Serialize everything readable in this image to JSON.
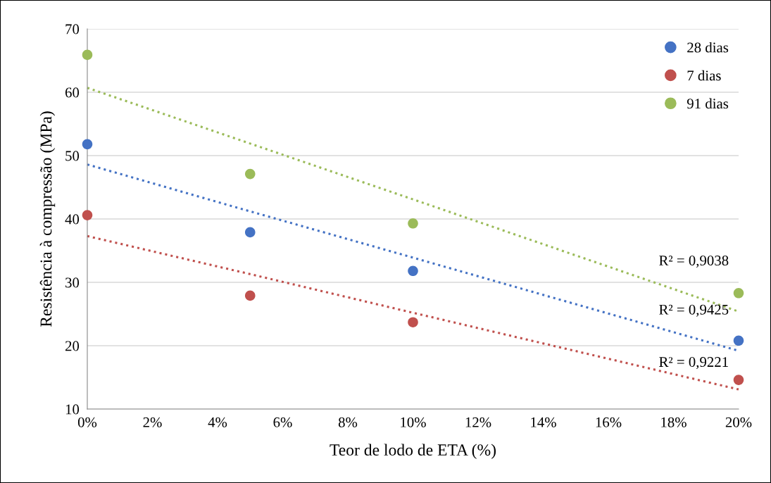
{
  "chart_data": {
    "type": "scatter",
    "xlabel": "Teor de lodo de ETA (%)",
    "ylabel": "Resistência à compressão (MPa)",
    "xlim": [
      0,
      20
    ],
    "ylim": [
      10,
      70
    ],
    "xticks": [
      {
        "value": 0,
        "label": "0%"
      },
      {
        "value": 2,
        "label": "2%"
      },
      {
        "value": 4,
        "label": "4%"
      },
      {
        "value": 6,
        "label": "6%"
      },
      {
        "value": 8,
        "label": "8%"
      },
      {
        "value": 10,
        "label": "10%"
      },
      {
        "value": 12,
        "label": "12%"
      },
      {
        "value": 14,
        "label": "14%"
      },
      {
        "value": 16,
        "label": "16%"
      },
      {
        "value": 18,
        "label": "18%"
      },
      {
        "value": 20,
        "label": "20%"
      }
    ],
    "yticks": [
      10,
      20,
      30,
      40,
      50,
      60,
      70
    ],
    "x": [
      0,
      5,
      10,
      20
    ],
    "series": [
      {
        "name": "28 dias",
        "color": "#4472c4",
        "values": [
          51.8,
          37.9,
          31.8,
          20.8
        ]
      },
      {
        "name": "7 dias",
        "color": "#c0504d",
        "values": [
          40.6,
          27.9,
          23.7,
          14.6
        ]
      },
      {
        "name": "91 dias",
        "color": "#9bbb59",
        "values": [
          65.9,
          47.1,
          39.3,
          28.3
        ]
      },
      {
        "type": "line",
        "line_style": "dotted",
        "marker": "none",
        "color": "#4472c4",
        "values": [
          48.6,
          41.2,
          33.9,
          19.2
        ]
      },
      {
        "type": "line",
        "line_style": "dotted",
        "marker": "none",
        "color": "#c0504d",
        "values": [
          37.3,
          31.3,
          25.2,
          13.1
        ]
      },
      {
        "type": "line",
        "line_style": "dotted",
        "marker": "none",
        "color": "#9bbb59",
        "values": [
          60.7,
          51.9,
          43.1,
          25.4
        ]
      }
    ],
    "annotations": [
      "R² = 0,9038",
      "R² = 0,9425",
      "R² = 0,9221"
    ],
    "marker": "circle",
    "grid": "y",
    "legend": "top right"
  }
}
